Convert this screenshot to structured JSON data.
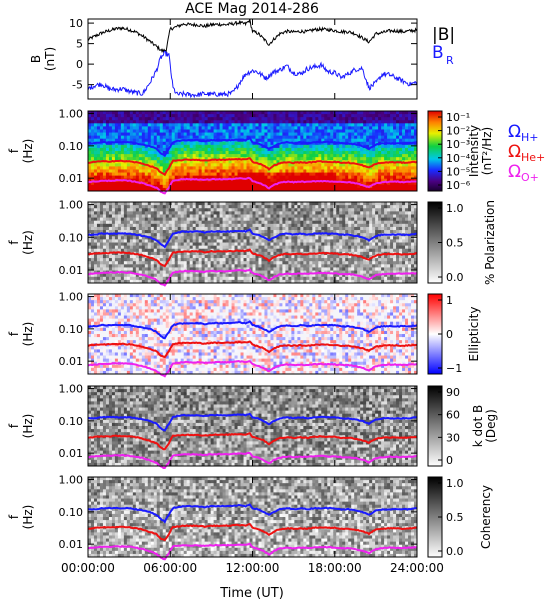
{
  "title": "ACE Mag 2014-286",
  "x_axis": {
    "ticks": [
      "00:00:00",
      "06:00:00",
      "12:00:00",
      "18:00:00",
      "24:00:00"
    ],
    "tick_hours": [
      0,
      6,
      12,
      18,
      24
    ],
    "label": "Time (UT)",
    "range_hours": [
      0,
      24
    ]
  },
  "freq_axis": {
    "ticks": [
      "1.00",
      "0.10",
      "0.01"
    ],
    "tick_values": [
      1.0,
      0.1,
      0.01
    ],
    "label_top": "f",
    "label_bottom": "(Hz)",
    "range_hz": [
      0.004,
      1.2
    ],
    "scale": "log"
  },
  "colors": {
    "black": "#000000",
    "blue": "#1a1aff",
    "red": "#ee1111",
    "magenta": "#ee22ee"
  },
  "chart_data": [
    {
      "type": "line",
      "panel": "field",
      "ylabel_top": "B",
      "ylabel_bottom": "(nT)",
      "ylim": [
        -8.5,
        11
      ],
      "yticks": [
        "10",
        "5",
        "0",
        "-5"
      ],
      "ytick_values": [
        10,
        5,
        0,
        -5
      ],
      "legend": [
        "|B|",
        "B",
        "R"
      ],
      "series": [
        {
          "name": "|B|",
          "color": "#000000",
          "x": [
            0,
            0.5,
            1,
            1.5,
            2,
            2.5,
            3,
            3.5,
            4,
            4.5,
            5,
            5.4,
            5.7,
            6,
            6.3,
            6.6,
            7,
            7.5,
            8,
            8.5,
            9,
            9.5,
            10,
            10.5,
            11,
            11.5,
            11.8,
            12,
            12.4,
            12.8,
            13.2,
            13.6,
            14,
            14.5,
            15,
            15.5,
            16,
            16.5,
            17,
            17.5,
            18,
            18.5,
            19,
            19.5,
            20,
            20.5,
            21,
            21.5,
            22,
            22.5,
            23,
            23.5,
            24
          ],
          "values": [
            6,
            6.8,
            7.6,
            8.1,
            8.6,
            8.8,
            8.4,
            7.8,
            6.8,
            5.6,
            4.3,
            3.2,
            3.4,
            8.6,
            8.9,
            9.3,
            9.8,
            9.6,
            9.6,
            9.2,
            9.6,
            9.7,
            9.6,
            9.8,
            10.1,
            9.8,
            10.7,
            8.0,
            7.5,
            6.2,
            4.8,
            6.2,
            7.4,
            8.0,
            7.8,
            8.0,
            7.9,
            8.4,
            8.5,
            8.4,
            8.2,
            7.9,
            7.9,
            7.4,
            6.4,
            5.4,
            7.4,
            7.7,
            8.1,
            8.1,
            7.9,
            8.1,
            8.3
          ]
        },
        {
          "name": "B_R",
          "color": "#1a1aff",
          "x": [
            0,
            0.5,
            1,
            1.5,
            2,
            2.5,
            3,
            3.5,
            4,
            4.5,
            5,
            5.3,
            5.6,
            5.9,
            6.2,
            6.5,
            7,
            7.5,
            8,
            8.5,
            9,
            9.5,
            10,
            10.5,
            10.8,
            11,
            11.5,
            12,
            12.3,
            12.6,
            13,
            13.5,
            14,
            14.5,
            15,
            15.5,
            16,
            16.5,
            17,
            17.5,
            18,
            18.5,
            19,
            19.5,
            20,
            20.5,
            21,
            21.5,
            22,
            22.5,
            23,
            23.5,
            24
          ],
          "values": [
            -6,
            -5.2,
            -4.8,
            -6.0,
            -6.2,
            -6.0,
            -6.6,
            -7.0,
            -7.2,
            -4.6,
            -1.5,
            1.5,
            2.6,
            2.2,
            -5.8,
            -7.4,
            -7.3,
            -7.5,
            -7.5,
            -7.2,
            -7.4,
            -7.3,
            -7.4,
            -7.1,
            -6.0,
            -4.8,
            -2.4,
            -1.6,
            -1.8,
            -2.5,
            -3.4,
            -2.0,
            -1.4,
            -0.4,
            -2.1,
            -2.4,
            -1.1,
            -0.7,
            -0.2,
            -1.8,
            -2.1,
            -3.3,
            -2.3,
            -1.3,
            -1.0,
            -5.8,
            -4.6,
            -2.4,
            -2.6,
            -3.4,
            -4.2,
            -4.9,
            -4.4
          ]
        }
      ]
    },
    {
      "type": "heatmap",
      "panel": "intensity",
      "colorbar_label_top": "Intensity",
      "colorbar_label_bottom": "(nT²/Hz)",
      "colorbar_ticks": [
        "10⁻¹",
        "10⁻²",
        "10⁻³",
        "10⁻⁴",
        "10⁻⁵",
        "10⁻⁶"
      ],
      "colorbar_range_log10": [
        -6.5,
        -0.5
      ],
      "legend": [
        {
          "symbol": "Ω",
          "sub": "H+",
          "color": "#1a1aff"
        },
        {
          "symbol": "Ω",
          "sub": "He+",
          "color": "#ee1111"
        },
        {
          "symbol": "Ω",
          "sub": "O+",
          "color": "#ee22ee"
        }
      ]
    },
    {
      "type": "heatmap",
      "panel": "polarization",
      "colorbar_label": "% Polarization",
      "colorbar_ticks": [
        "1.0",
        "0.5",
        "0.0"
      ],
      "colorbar_range": [
        0,
        1
      ]
    },
    {
      "type": "heatmap",
      "panel": "ellipticity",
      "colorbar_label": "Ellipticity",
      "colorbar_ticks": [
        "1",
        "0",
        "−1"
      ],
      "colorbar_range": [
        -1,
        1
      ]
    },
    {
      "type": "heatmap",
      "panel": "kdotb",
      "colorbar_label_top": "k dot B",
      "colorbar_label_bottom": "(Deg)",
      "colorbar_ticks": [
        "90",
        "60",
        "30",
        "0"
      ],
      "colorbar_range": [
        0,
        90
      ]
    },
    {
      "type": "heatmap",
      "panel": "coherency",
      "colorbar_label": "Coherency",
      "colorbar_ticks": [
        "1.0",
        "0.5",
        "0.0"
      ],
      "colorbar_range": [
        0,
        1
      ]
    }
  ],
  "gyrofrequencies": {
    "x": [
      0,
      0.5,
      1,
      1.5,
      2,
      2.5,
      3,
      3.5,
      4,
      4.5,
      5,
      5.3,
      5.6,
      5.9,
      6.2,
      6.5,
      7,
      7.5,
      8,
      8.5,
      9,
      9.5,
      10,
      10.5,
      11,
      11.5,
      11.8,
      12,
      12.4,
      12.8,
      13.2,
      13.6,
      14,
      14.5,
      15,
      15.5,
      16,
      16.5,
      17,
      17.5,
      18,
      18.5,
      19,
      19.5,
      20,
      20.5,
      21,
      21.5,
      22,
      22.5,
      23,
      23.5,
      24
    ],
    "H+": [
      0.12,
      0.12,
      0.13,
      0.13,
      0.13,
      0.13,
      0.13,
      0.12,
      0.11,
      0.1,
      0.08,
      0.06,
      0.05,
      0.08,
      0.13,
      0.14,
      0.15,
      0.15,
      0.15,
      0.14,
      0.15,
      0.15,
      0.15,
      0.15,
      0.16,
      0.15,
      0.17,
      0.13,
      0.12,
      0.1,
      0.08,
      0.1,
      0.12,
      0.13,
      0.12,
      0.13,
      0.12,
      0.13,
      0.13,
      0.13,
      0.13,
      0.12,
      0.12,
      0.11,
      0.1,
      0.08,
      0.11,
      0.12,
      0.12,
      0.12,
      0.12,
      0.12,
      0.13
    ],
    "He+": [
      0.03,
      0.032,
      0.033,
      0.033,
      0.034,
      0.034,
      0.033,
      0.031,
      0.028,
      0.024,
      0.02,
      0.015,
      0.013,
      0.02,
      0.034,
      0.035,
      0.037,
      0.037,
      0.037,
      0.035,
      0.037,
      0.037,
      0.037,
      0.038,
      0.039,
      0.038,
      0.041,
      0.032,
      0.029,
      0.025,
      0.019,
      0.025,
      0.029,
      0.031,
      0.03,
      0.031,
      0.03,
      0.032,
      0.033,
      0.032,
      0.032,
      0.03,
      0.03,
      0.028,
      0.025,
      0.021,
      0.028,
      0.03,
      0.031,
      0.031,
      0.03,
      0.031,
      0.032
    ],
    "O+": [
      0.0075,
      0.0079,
      0.0082,
      0.0083,
      0.0085,
      0.0085,
      0.0083,
      0.0077,
      0.007,
      0.006,
      0.005,
      0.0038,
      0.0034,
      0.005,
      0.0085,
      0.0088,
      0.0093,
      0.0092,
      0.0092,
      0.0088,
      0.0092,
      0.0093,
      0.0092,
      0.0094,
      0.0098,
      0.0095,
      0.0102,
      0.008,
      0.0072,
      0.0062,
      0.0048,
      0.0062,
      0.0073,
      0.0078,
      0.0075,
      0.0078,
      0.0076,
      0.008,
      0.0082,
      0.008,
      0.0079,
      0.0075,
      0.0075,
      0.007,
      0.0062,
      0.0052,
      0.007,
      0.0075,
      0.0078,
      0.0078,
      0.0076,
      0.0078,
      0.008
    ]
  }
}
